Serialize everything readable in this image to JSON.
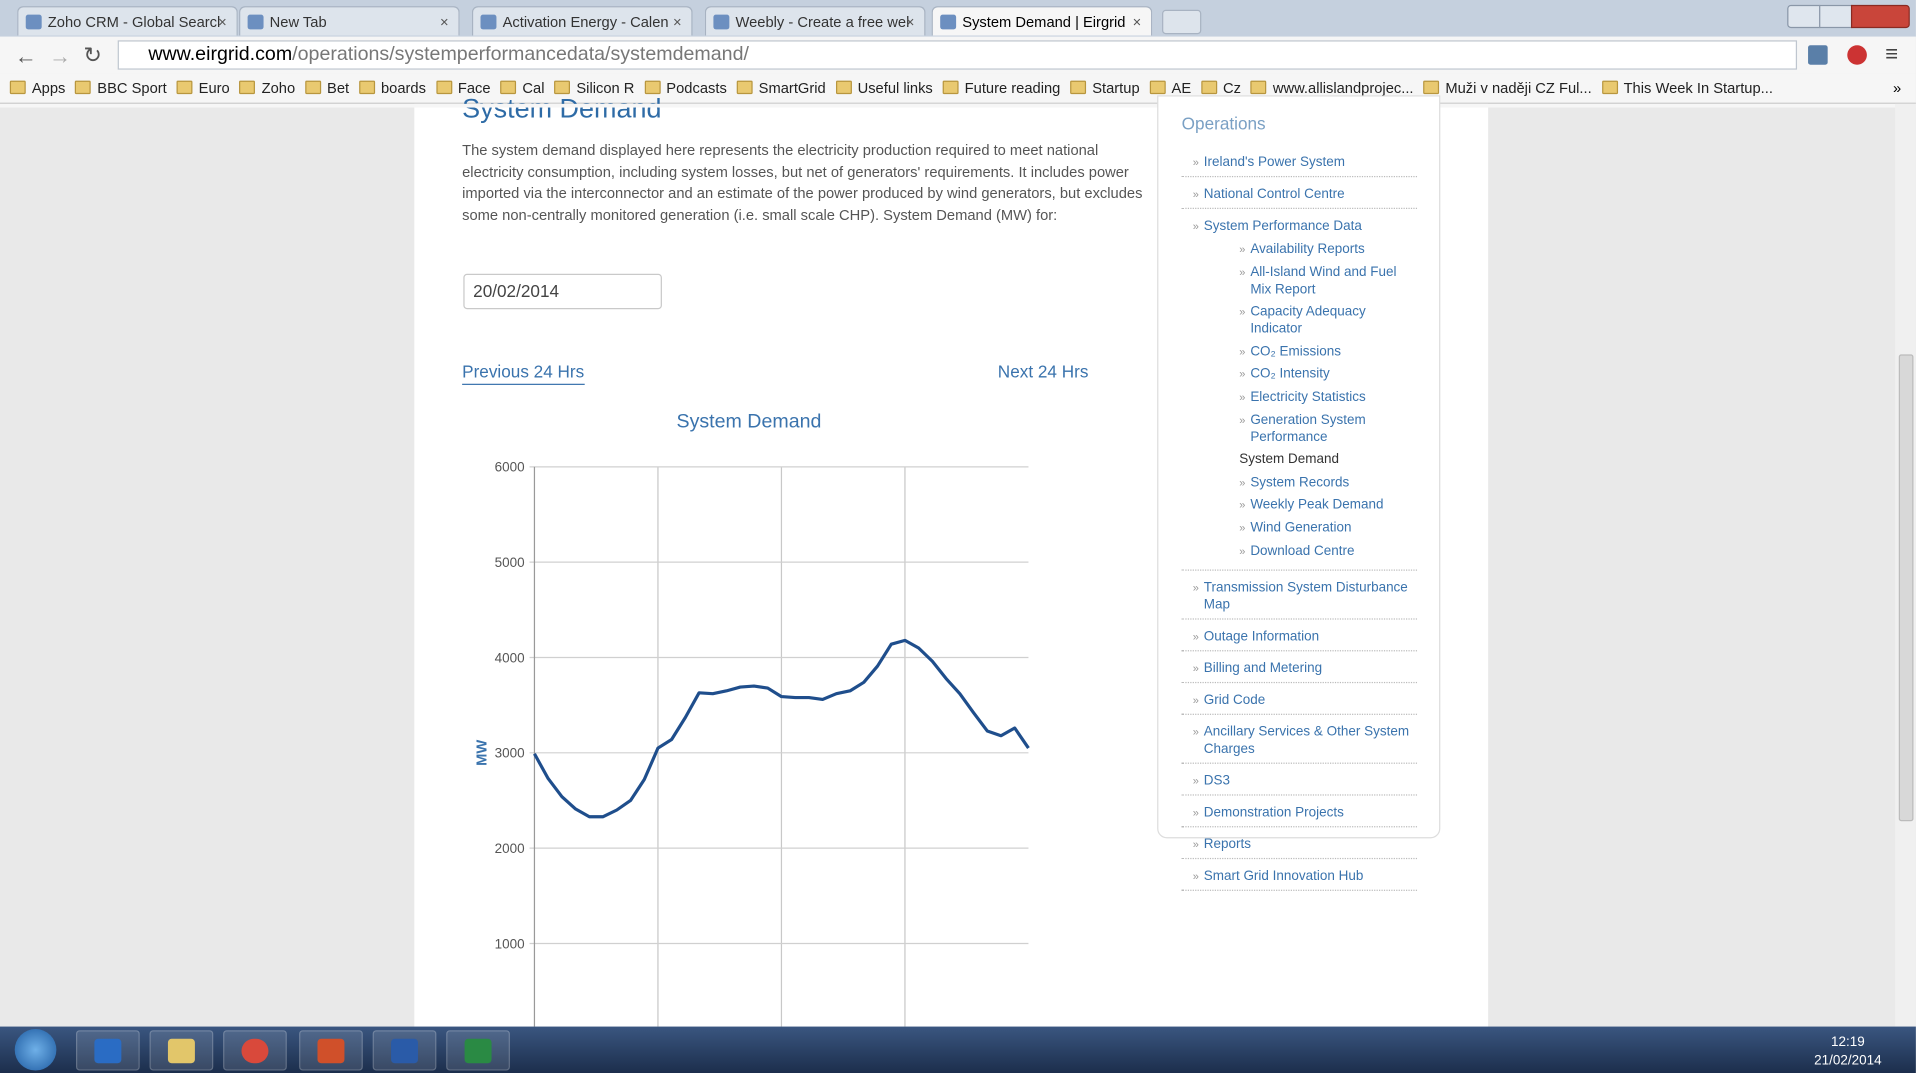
{
  "browser": {
    "tabs": [
      {
        "label": "Zoho CRM - Global Searcl",
        "active": false
      },
      {
        "label": "New Tab",
        "active": false
      },
      {
        "label": "Activation Energy - Calen",
        "active": false
      },
      {
        "label": "Weebly - Create a free wel",
        "active": false
      },
      {
        "label": "System Demand | Eirgrid",
        "active": true
      }
    ],
    "url_host": "www.eirgrid.com",
    "url_path": "/operations/systemperformancedata/systemdemand/",
    "bookmarks": [
      "Apps",
      "BBC Sport",
      "Euro",
      "Zoho",
      "Bet",
      "boards",
      "Face",
      "Cal",
      "Silicon R",
      "Podcasts",
      "SmartGrid",
      "Useful links",
      "Future reading",
      "Startup",
      "AE",
      "Cz",
      "www.allislandprojec...",
      "Muži v naději CZ Ful...",
      "This Week In Startup..."
    ],
    "more": "»"
  },
  "page": {
    "heading": "System Demand",
    "description": "The system demand displayed here represents the electricity production required to meet national electricity consumption, including system losses, but net of generators' requirements.  It includes power imported via the interconnector and an estimate of the power produced by wind generators, but excludes some non-centrally monitored generation (i.e. small scale CHP). System Demand (MW) for:",
    "date": "20/02/2014",
    "prev": "Previous 24 Hrs",
    "next": "Next 24 Hrs"
  },
  "sidebar": {
    "title": "Operations",
    "items": [
      {
        "label": "Ireland's Power System"
      },
      {
        "label": "National Control Centre"
      },
      {
        "label": "System Performance Data",
        "children": [
          {
            "label": "Availability Reports"
          },
          {
            "label": "All-Island Wind and Fuel Mix Report"
          },
          {
            "label": "Capacity Adequacy Indicator"
          },
          {
            "label": "CO₂ Emissions"
          },
          {
            "label": "CO₂ Intensity"
          },
          {
            "label": "Electricity Statistics"
          },
          {
            "label": "Generation System Performance"
          },
          {
            "label": "System Demand",
            "current": true
          },
          {
            "label": "System Records"
          },
          {
            "label": "Weekly Peak Demand"
          },
          {
            "label": "Wind Generation"
          },
          {
            "label": "Download Centre"
          }
        ]
      },
      {
        "label": "Transmission System Disturbance Map"
      },
      {
        "label": "Outage Information"
      },
      {
        "label": "Billing and Metering"
      },
      {
        "label": "Grid Code"
      },
      {
        "label": "Ancillary Services & Other System Charges"
      },
      {
        "label": "DS3"
      },
      {
        "label": "Demonstration Projects"
      },
      {
        "label": "Reports"
      },
      {
        "label": "Smart Grid Innovation Hub"
      }
    ]
  },
  "chart_data": {
    "type": "line",
    "title": "System Demand",
    "ylabel": "MW",
    "color": "#1f4e8c",
    "ylim": [
      0,
      6000
    ],
    "yticks": [
      1000,
      2000,
      3000,
      4000,
      5000,
      6000
    ],
    "grid": true,
    "values": [
      2990,
      2730,
      2540,
      2410,
      2330,
      2330,
      2400,
      2500,
      2720,
      3050,
      3140,
      3370,
      3630,
      3620,
      3650,
      3690,
      3700,
      3680,
      3590,
      3580,
      3580,
      3560,
      3620,
      3650,
      3740,
      3910,
      4140,
      4180,
      4100,
      3960,
      3780,
      3620,
      3420,
      3230,
      3180,
      3260,
      3050
    ]
  },
  "taskbar": {
    "time": "12:19",
    "date": "21/02/2014"
  }
}
